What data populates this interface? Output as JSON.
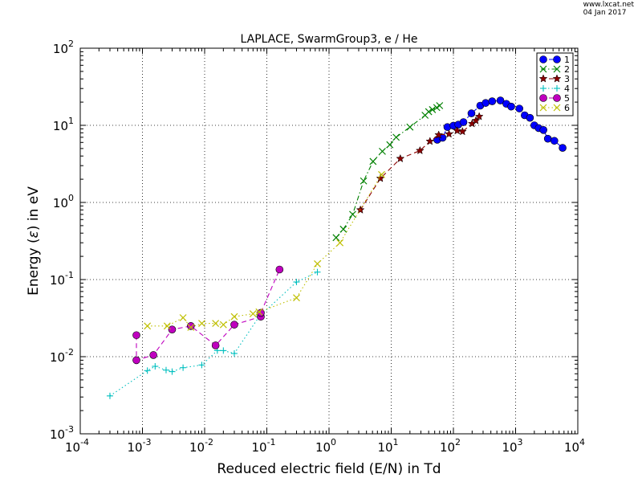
{
  "watermark": {
    "site": "www.lxcat.net",
    "date": "04 Jan 2017"
  },
  "chart_data": {
    "type": "line",
    "title": "LAPLACE, SwarmGroup3, e / He",
    "xlabel": "Reduced electric field (E/N) in Td",
    "ylabel_prefix": "Energy (",
    "ylabel_symbol": "ε",
    "ylabel_suffix": ") in eV",
    "xscale": "log",
    "yscale": "log",
    "xlim": [
      0.0001,
      10000
    ],
    "ylim": [
      0.001,
      100
    ],
    "x_ticks": [
      {
        "base": "10",
        "exp": "-4"
      },
      {
        "base": "10",
        "exp": "-3"
      },
      {
        "base": "10",
        "exp": "-2"
      },
      {
        "base": "10",
        "exp": "-1"
      },
      {
        "base": "10",
        "exp": "0"
      },
      {
        "base": "10",
        "exp": "1"
      },
      {
        "base": "10",
        "exp": "2"
      },
      {
        "base": "10",
        "exp": "3"
      },
      {
        "base": "10",
        "exp": "4"
      }
    ],
    "y_ticks": [
      {
        "base": "10",
        "exp": "-3"
      },
      {
        "base": "10",
        "exp": "-2"
      },
      {
        "base": "10",
        "exp": "-1"
      },
      {
        "base": "10",
        "exp": "0"
      },
      {
        "base": "10",
        "exp": "1"
      },
      {
        "base": "10",
        "exp": "2"
      }
    ],
    "grid": true,
    "legend_position": "top-right",
    "series": [
      {
        "name": "1",
        "color": "#0000ff",
        "marker": "circle",
        "linestyle": "dashed",
        "x": [
          55,
          67,
          80,
          100,
          120,
          145,
          195,
          270,
          330,
          420,
          570,
          710,
          850,
          1150,
          1400,
          1700,
          2000,
          2350,
          2800,
          3300,
          4200,
          5700
        ],
        "y": [
          6.5,
          6.9,
          9.5,
          9.9,
          10.2,
          11,
          14.3,
          18,
          19.5,
          20.5,
          21,
          19,
          17.5,
          16.5,
          13.5,
          12.5,
          10,
          9.2,
          8.7,
          6.7,
          6.3,
          5.1
        ]
      },
      {
        "name": "2",
        "color": "#008000",
        "marker": "x",
        "linestyle": "dashdot",
        "x": [
          1.3,
          1.7,
          2.4,
          3.6,
          5.1,
          7.2,
          9.5,
          12,
          20,
          35,
          40,
          46,
          54,
          60
        ],
        "y": [
          0.35,
          0.45,
          0.7,
          1.9,
          3.4,
          4.6,
          5.6,
          7,
          9.5,
          13.5,
          15,
          16,
          17,
          18
        ]
      },
      {
        "name": "3",
        "color": "#8b0000",
        "marker": "star",
        "linestyle": "dashed",
        "x": [
          3.2,
          6.7,
          14,
          29,
          42,
          58,
          85,
          115,
          140,
          200,
          230,
          260
        ],
        "y": [
          0.8,
          2.05,
          3.7,
          4.7,
          6.2,
          7.5,
          7.7,
          8.5,
          8.3,
          10.5,
          11.5,
          13
        ]
      },
      {
        "name": "4",
        "color": "#00bfbf",
        "marker": "plus",
        "linestyle": "dotted",
        "x": [
          0.0003,
          0.0012,
          0.0016,
          0.0024,
          0.003,
          0.0045,
          0.009,
          0.016,
          0.02,
          0.03,
          0.075,
          0.3,
          0.65
        ],
        "y": [
          0.0031,
          0.0066,
          0.0075,
          0.0067,
          0.0064,
          0.0072,
          0.0078,
          0.012,
          0.012,
          0.011,
          0.033,
          0.093,
          0.125
        ]
      },
      {
        "name": "5",
        "color": "#bf00bf",
        "marker": "circle",
        "linestyle": "dashed",
        "x": [
          0.0008,
          0.0008,
          0.0015,
          0.003,
          0.006,
          0.015,
          0.03,
          0.08,
          0.08,
          0.16
        ],
        "y": [
          0.019,
          0.009,
          0.0105,
          0.0225,
          0.025,
          0.014,
          0.026,
          0.033,
          0.037,
          0.135
        ]
      },
      {
        "name": "6",
        "color": "#bfbf00",
        "marker": "x",
        "linestyle": "dotted",
        "x": [
          0.0012,
          0.0025,
          0.0045,
          0.006,
          0.009,
          0.015,
          0.02,
          0.03,
          0.06,
          0.075,
          0.3,
          0.65,
          1.5,
          7
        ],
        "y": [
          0.025,
          0.025,
          0.032,
          0.024,
          0.027,
          0.027,
          0.026,
          0.033,
          0.036,
          0.038,
          0.058,
          0.16,
          0.3,
          2.3
        ]
      }
    ]
  }
}
